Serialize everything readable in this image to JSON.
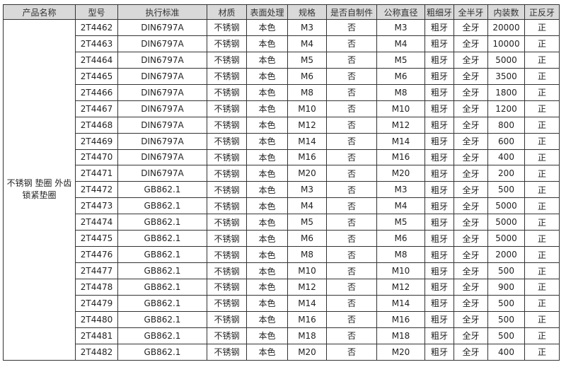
{
  "headers": [
    "产品名称",
    "型号",
    "执行标准",
    "材质",
    "表面处理",
    "规格",
    "是否自制件",
    "公称直径",
    "粗细牙",
    "全半牙",
    "内装数",
    "正反牙"
  ],
  "product_name": "不锈钢 垫圈 外齿锁紧垫圈",
  "rows": [
    [
      "2T4462",
      "DIN6797A",
      "不锈钢",
      "本色",
      "M3",
      "否",
      "M3",
      "粗牙",
      "全牙",
      "20000",
      "正"
    ],
    [
      "2T4463",
      "DIN6797A",
      "不锈钢",
      "本色",
      "M4",
      "否",
      "M4",
      "粗牙",
      "全牙",
      "10000",
      "正"
    ],
    [
      "2T4464",
      "DIN6797A",
      "不锈钢",
      "本色",
      "M5",
      "否",
      "M5",
      "粗牙",
      "全牙",
      "5000",
      "正"
    ],
    [
      "2T4465",
      "DIN6797A",
      "不锈钢",
      "本色",
      "M6",
      "否",
      "M6",
      "粗牙",
      "全牙",
      "3500",
      "正"
    ],
    [
      "2T4466",
      "DIN6797A",
      "不锈钢",
      "本色",
      "M8",
      "否",
      "M8",
      "粗牙",
      "全牙",
      "1800",
      "正"
    ],
    [
      "2T4467",
      "DIN6797A",
      "不锈钢",
      "本色",
      "M10",
      "否",
      "M10",
      "粗牙",
      "全牙",
      "1200",
      "正"
    ],
    [
      "2T4468",
      "DIN6797A",
      "不锈钢",
      "本色",
      "M12",
      "否",
      "M12",
      "粗牙",
      "全牙",
      "800",
      "正"
    ],
    [
      "2T4469",
      "DIN6797A",
      "不锈钢",
      "本色",
      "M14",
      "否",
      "M14",
      "粗牙",
      "全牙",
      "600",
      "正"
    ],
    [
      "2T4470",
      "DIN6797A",
      "不锈钢",
      "本色",
      "M16",
      "否",
      "M16",
      "粗牙",
      "全牙",
      "400",
      "正"
    ],
    [
      "2T4471",
      "DIN6797A",
      "不锈钢",
      "本色",
      "M20",
      "否",
      "M20",
      "粗牙",
      "全牙",
      "200",
      "正"
    ],
    [
      "2T4472",
      "GB862.1",
      "不锈钢",
      "本色",
      "M3",
      "否",
      "M3",
      "粗牙",
      "全牙",
      "500",
      "正"
    ],
    [
      "2T4473",
      "GB862.1",
      "不锈钢",
      "本色",
      "M4",
      "否",
      "M4",
      "粗牙",
      "全牙",
      "5000",
      "正"
    ],
    [
      "2T4474",
      "GB862.1",
      "不锈钢",
      "本色",
      "M5",
      "否",
      "M5",
      "粗牙",
      "全牙",
      "5000",
      "正"
    ],
    [
      "2T4475",
      "GB862.1",
      "不锈钢",
      "本色",
      "M6",
      "否",
      "M6",
      "粗牙",
      "全牙",
      "5000",
      "正"
    ],
    [
      "2T4476",
      "GB862.1",
      "不锈钢",
      "本色",
      "M8",
      "否",
      "M8",
      "粗牙",
      "全牙",
      "2000",
      "正"
    ],
    [
      "2T4477",
      "GB862.1",
      "不锈钢",
      "本色",
      "M10",
      "否",
      "M10",
      "粗牙",
      "全牙",
      "500",
      "正"
    ],
    [
      "2T4478",
      "GB862.1",
      "不锈钢",
      "本色",
      "M12",
      "否",
      "M12",
      "粗牙",
      "全牙",
      "900",
      "正"
    ],
    [
      "2T4479",
      "GB862.1",
      "不锈钢",
      "本色",
      "M14",
      "否",
      "M14",
      "粗牙",
      "全牙",
      "500",
      "正"
    ],
    [
      "2T4480",
      "GB862.1",
      "不锈钢",
      "本色",
      "M16",
      "否",
      "M16",
      "粗牙",
      "全牙",
      "500",
      "正"
    ],
    [
      "2T4481",
      "GB862.1",
      "不锈钢",
      "本色",
      "M18",
      "否",
      "M18",
      "粗牙",
      "全牙",
      "500",
      "正"
    ],
    [
      "2T4482",
      "GB862.1",
      "不锈钢",
      "本色",
      "M20",
      "否",
      "M20",
      "粗牙",
      "全牙",
      "400",
      "正"
    ]
  ]
}
